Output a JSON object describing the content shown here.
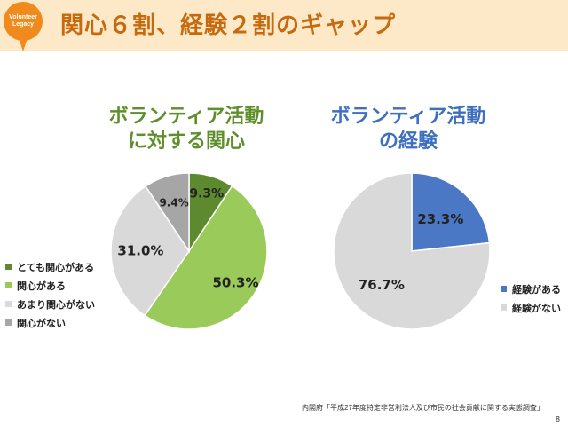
{
  "header": {
    "badge_text": "Volunteer Legacy",
    "title": "関心６割、経験２割のギャップ"
  },
  "chart_data": [
    {
      "type": "pie",
      "title": "ボランティア活動に対する関心",
      "title_lines": [
        "ボランティア活動",
        "に対する関心"
      ],
      "legend_position": "left",
      "slices": [
        {
          "label": "とても関心がある",
          "value": 9.3,
          "value_label": "9.3%",
          "color": "#5e8a2f"
        },
        {
          "label": "関心がある",
          "value": 50.3,
          "value_label": "50.3%",
          "color": "#9acb5a"
        },
        {
          "label": "あまり関心がない",
          "value": 31.0,
          "value_label": "31.0%",
          "color": "#d9d9d9"
        },
        {
          "label": "関心がない",
          "value": 9.4,
          "value_label": "9.4%",
          "color": "#a6a6a6"
        }
      ]
    },
    {
      "type": "pie",
      "title": "ボランティア活動の経験",
      "title_lines": [
        "ボランティア活動",
        "の経験"
      ],
      "legend_position": "right",
      "slices": [
        {
          "label": "経験がある",
          "value": 23.3,
          "value_label": "23.3%",
          "color": "#4b78c4"
        },
        {
          "label": "経験がない",
          "value": 76.7,
          "value_label": "76.7%",
          "color": "#d9d9d9"
        }
      ]
    }
  ],
  "footer": {
    "source": "内閣府「平成27年度特定非営利法人及び市民の社会貢献に関する実態調査」",
    "page_number": "8"
  }
}
